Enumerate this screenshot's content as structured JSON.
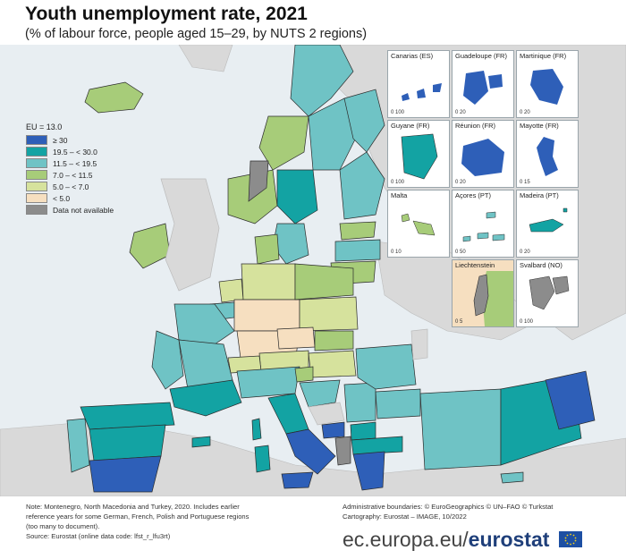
{
  "title": "Youth unemployment rate, 2021",
  "subtitle": "(% of labour force, people aged 15–29, by NUTS 2 regions)",
  "legend": {
    "title": "EU = 13.0",
    "items": [
      {
        "label": "≥ 30",
        "color": "#2e5fb8"
      },
      {
        "label": "19.5 – < 30.0",
        "color": "#13a3a3"
      },
      {
        "label": "11.5 – < 19.5",
        "color": "#6fc3c5"
      },
      {
        "label": "7.0 – < 11.5",
        "color": "#a7cc79"
      },
      {
        "label": "5.0 – < 7.0",
        "color": "#d6e29d"
      },
      {
        "label": "< 5.0",
        "color": "#f6dfc0"
      },
      {
        "label": "Data not available",
        "color": "#8c8c8c"
      }
    ]
  },
  "insets": [
    {
      "label": "Canarias (ES)",
      "scale": "0   100"
    },
    {
      "label": "Guadeloupe (FR)",
      "scale": "0   20"
    },
    {
      "label": "Martinique (FR)",
      "scale": "0   20"
    },
    {
      "label": "Guyane (FR)",
      "scale": "0   100"
    },
    {
      "label": "Réunion (FR)",
      "scale": "0   20"
    },
    {
      "label": "Mayotte (FR)",
      "scale": "0   15"
    },
    {
      "label": "Malta",
      "scale": "0   10"
    },
    {
      "label": "Açores (PT)",
      "scale": "0   50"
    },
    {
      "label": "Madeira (PT)",
      "scale": "0   20"
    },
    {
      "label": "Liechtenstein",
      "scale": "0   5"
    },
    {
      "label": "Svalbard (NO)",
      "scale": "0   100"
    }
  ],
  "note": {
    "line1": "Note: Montenegro, North Macedonia and Turkey, 2020. Includes earlier",
    "line2": "reference years for some German, French, Polish and Portuguese regions",
    "line3": "(too many to document).",
    "line4": "Source: Eurostat (online data code: lfst_r_lfu3rt)"
  },
  "credits": {
    "line1": "Administrative boundaries: © EuroGeographics © UN–FAO © Turkstat",
    "line2": "Cartography: Eurostat – IMAGE, 10/2022"
  },
  "brand": {
    "prefix": "ec.europa.eu/",
    "name": "eurostat"
  },
  "colors": {
    "sea": "#e8eef2",
    "non_eu_land": "#d9d9d9",
    "border": "#2b2b2b"
  }
}
